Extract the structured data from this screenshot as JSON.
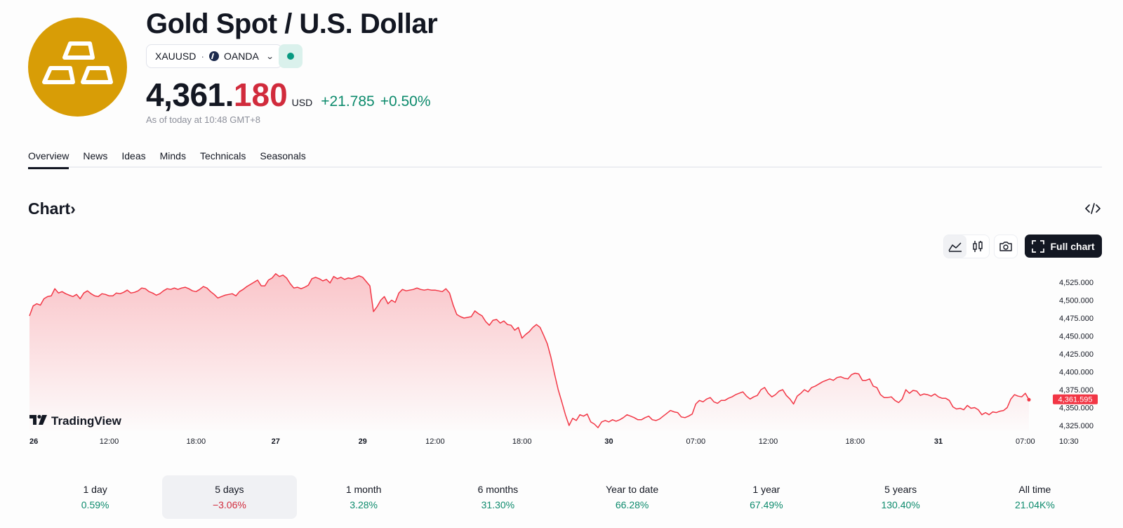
{
  "header": {
    "title": "Gold Spot / U.S. Dollar",
    "symbol": "XAUUSD",
    "separator": "·",
    "broker": "OANDA",
    "price_main": "4,361.",
    "price_tail": "180",
    "currency": "USD",
    "change": "+21.785",
    "change_pct": "+0.50%",
    "as_of": "As of today at 10:48 GMT+8"
  },
  "tabs": [
    "Overview",
    "News",
    "Ideas",
    "Minds",
    "Technicals",
    "Seasonals"
  ],
  "section": {
    "title": "Chart",
    "arrow": "›"
  },
  "toolbar": {
    "full_chart_label": "Full chart"
  },
  "chart_data": {
    "type": "area",
    "watermark": "TradingView",
    "line_color": "#f23645",
    "last_value_label": "4,361.595",
    "last_value": 4361.595,
    "ylim": [
      4315,
      4540
    ],
    "y_ticks": [
      {
        "value": 4525,
        "label": "4,525.000"
      },
      {
        "value": 4500,
        "label": "4,500.000"
      },
      {
        "value": 4475,
        "label": "4,475.000"
      },
      {
        "value": 4450,
        "label": "4,450.000"
      },
      {
        "value": 4425,
        "label": "4,425.000"
      },
      {
        "value": 4400,
        "label": "4,400.000"
      },
      {
        "value": 4375,
        "label": "4,375.000"
      },
      {
        "value": 4350,
        "label": "4,350.000"
      },
      {
        "value": 4325,
        "label": "4,325.000"
      }
    ],
    "x_ticks": [
      {
        "label": "26",
        "bold": true,
        "i": 0
      },
      {
        "label": "12:00",
        "bold": false,
        "i": 22
      },
      {
        "label": "18:00",
        "bold": false,
        "i": 46
      },
      {
        "label": "27",
        "bold": true,
        "i": 68
      },
      {
        "label": "29",
        "bold": true,
        "i": 92
      },
      {
        "label": "12:00",
        "bold": false,
        "i": 112
      },
      {
        "label": "18:00",
        "bold": false,
        "i": 136
      },
      {
        "label": "30",
        "bold": true,
        "i": 160
      },
      {
        "label": "07:00",
        "bold": false,
        "i": 184
      },
      {
        "label": "12:00",
        "bold": false,
        "i": 204
      },
      {
        "label": "18:00",
        "bold": false,
        "i": 228
      },
      {
        "label": "31",
        "bold": true,
        "i": 251
      },
      {
        "label": "07:00",
        "bold": false,
        "i": 275
      },
      {
        "label": "10:30",
        "bold": false,
        "i": 287
      }
    ],
    "values": [
      4478,
      4492,
      4495,
      4493,
      4502,
      4505,
      4506,
      4516,
      4510,
      4512,
      4509,
      4507,
      4505,
      4508,
      4502,
      4510,
      4513,
      4509,
      4506,
      4505,
      4509,
      4508,
      4506,
      4506,
      4510,
      4509,
      4511,
      4514,
      4510,
      4511,
      4513,
      4517,
      4516,
      4512,
      4510,
      4507,
      4509,
      4513,
      4516,
      4515,
      4517,
      4515,
      4517,
      4518,
      4516,
      4513,
      4512,
      4515,
      4519,
      4517,
      4512,
      4508,
      4503,
      4505,
      4507,
      4508,
      4509,
      4506,
      4512,
      4515,
      4519,
      4522,
      4525,
      4528,
      4520,
      4520,
      4528,
      4531,
      4537,
      4533,
      4535,
      4531,
      4523,
      4517,
      4518,
      4516,
      4518,
      4521,
      4530,
      4532,
      4530,
      4527,
      4529,
      4524,
      4533,
      4530,
      4532,
      4529,
      4531,
      4530,
      4532,
      4534,
      4532,
      4526,
      4520,
      4484,
      4491,
      4500,
      4505,
      4495,
      4500,
      4497,
      4510,
      4515,
      4513,
      4514,
      4515,
      4517,
      4515,
      4514,
      4515,
      4514,
      4514,
      4513,
      4512,
      4516,
      4510,
      4493,
      4480,
      4477,
      4475,
      4476,
      4477,
      4485,
      4481,
      4478,
      4470,
      4465,
      4472,
      4473,
      4468,
      4471,
      4466,
      4465,
      4458,
      4462,
      4447,
      4452,
      4456,
      4462,
      4466,
      4462,
      4451,
      4439,
      4420,
      4397,
      4375,
      4358,
      4340,
      4325,
      4335,
      4332,
      4340,
      4338,
      4341,
      4330,
      4327,
      4322,
      4330,
      4332,
      4330,
      4333,
      4331,
      4333,
      4336,
      4340,
      4338,
      4336,
      4333,
      4333,
      4336,
      4338,
      4333,
      4332,
      4334,
      4338,
      4342,
      4346,
      4344,
      4343,
      4337,
      4336,
      4338,
      4341,
      4355,
      4360,
      4358,
      4362,
      4364,
      4358,
      4356,
      4360,
      4360,
      4363,
      4365,
      4368,
      4370,
      4372,
      4366,
      4362,
      4365,
      4367,
      4375,
      4378,
      4370,
      4365,
      4368,
      4373,
      4375,
      4367,
      4362,
      4355,
      4366,
      4370,
      4375,
      4372,
      4378,
      4380,
      4383,
      4386,
      4388,
      4390,
      4388,
      4392,
      4393,
      4391,
      4390,
      4396,
      4398,
      4397,
      4388,
      4388,
      4390,
      4380,
      4378,
      4368,
      4364,
      4364,
      4365,
      4360,
      4357,
      4362,
      4375,
      4370,
      4374,
      4373,
      4367,
      4369,
      4368,
      4366,
      4369,
      4365,
      4363,
      4363,
      4360,
      4351,
      4348,
      4349,
      4347,
      4353,
      4349,
      4350,
      4347,
      4340,
      4343,
      4340,
      4344,
      4343,
      4345,
      4346,
      4350,
      4362,
      4368,
      4366,
      4365,
      4370,
      4361
    ]
  },
  "periods": [
    {
      "label": "1 day",
      "value": "0.59%",
      "negative": false,
      "selected": false
    },
    {
      "label": "5 days",
      "value": "−3.06%",
      "negative": true,
      "selected": true
    },
    {
      "label": "1 month",
      "value": "3.28%",
      "negative": false,
      "selected": false
    },
    {
      "label": "6 months",
      "value": "31.30%",
      "negative": false,
      "selected": false
    },
    {
      "label": "Year to date",
      "value": "66.28%",
      "negative": false,
      "selected": false
    },
    {
      "label": "1 year",
      "value": "67.49%",
      "negative": false,
      "selected": false
    },
    {
      "label": "5 years",
      "value": "130.40%",
      "negative": false,
      "selected": false
    },
    {
      "label": "All time",
      "value": "21.04K%",
      "negative": false,
      "selected": false
    }
  ]
}
